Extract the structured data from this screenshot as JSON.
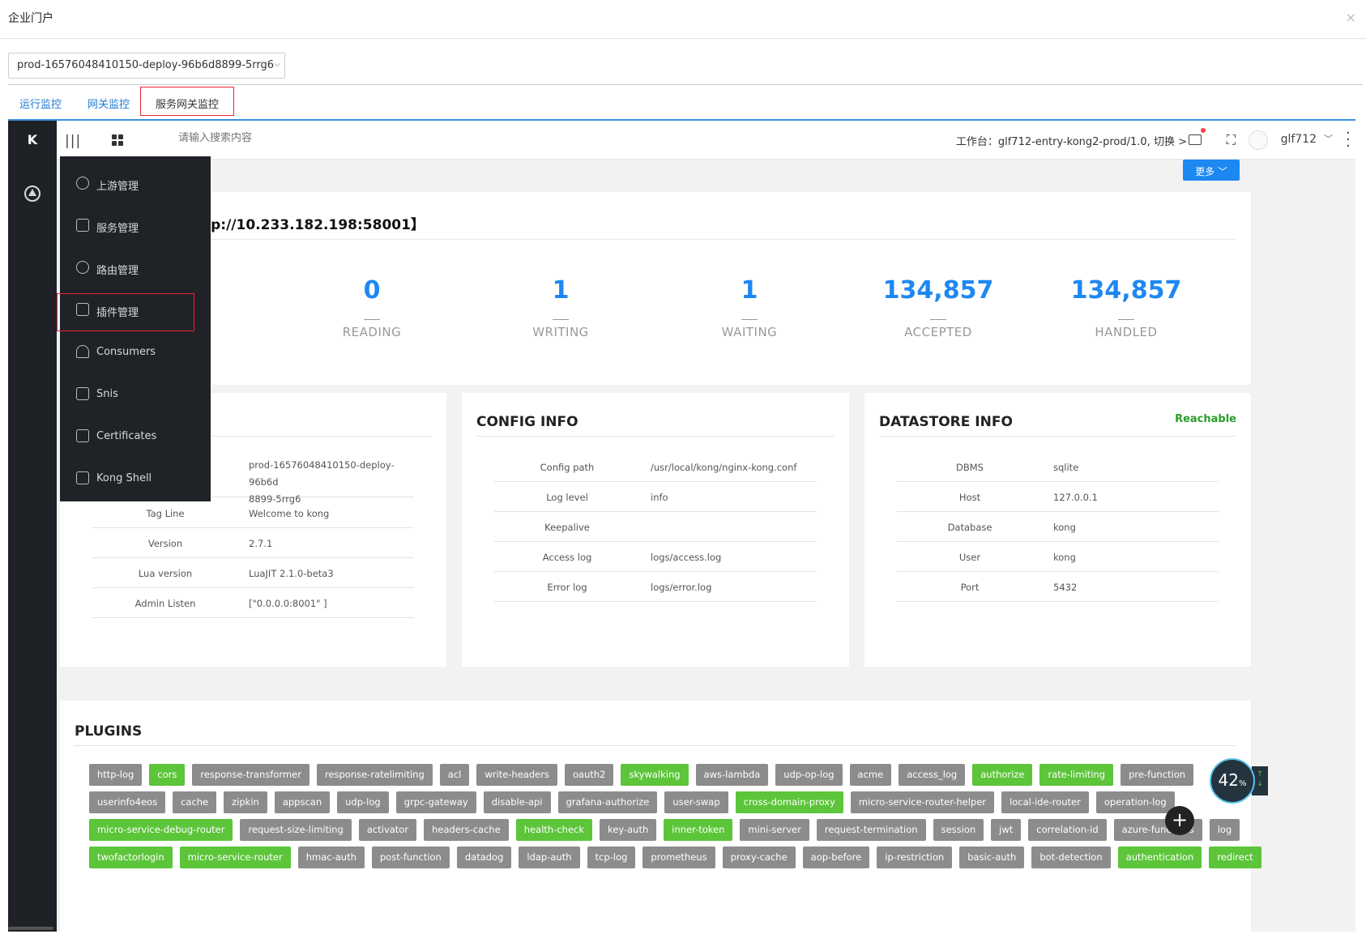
{
  "portal": {
    "title": "企业门户",
    "close_icon": "×",
    "pod": "prod-16576048410150-deploy-96b6d8899-5rrg6",
    "tabs": [
      "运行监控",
      "网关监控",
      "服务网关监控"
    ]
  },
  "app": {
    "logo": "K",
    "search_placeholder": "请输入搜索内容",
    "workspace": "工作台：glf712-entry-kong2-prod/1.0, 切换",
    "workspace_arrow": ">",
    "username": "glf712",
    "more_button": "更多"
  },
  "nav_menu": [
    {
      "label": "上游管理",
      "icon": "upstream-icon"
    },
    {
      "label": "服务管理",
      "icon": "service-tree-icon"
    },
    {
      "label": "路由管理",
      "icon": "route-icon"
    },
    {
      "label": "插件管理",
      "icon": "plugin-icon"
    },
    {
      "label": "Consumers",
      "icon": "user-icon"
    },
    {
      "label": "Snis",
      "icon": "sni-icon"
    },
    {
      "label": "Certificates",
      "icon": "certificate-icon"
    },
    {
      "label": "Kong Shell",
      "icon": "terminal-icon"
    }
  ],
  "node": {
    "title": "tp://10.233.182.198:58001】",
    "metrics": [
      {
        "value": "0",
        "label": "READING"
      },
      {
        "value": "1",
        "label": "WRITING"
      },
      {
        "value": "1",
        "label": "WAITING"
      },
      {
        "value": "134,857",
        "label": "ACCEPTED"
      },
      {
        "value": "134,857",
        "label": "HANDLED"
      }
    ]
  },
  "node_info": {
    "rows": [
      {
        "k": "",
        "v": "prod-16576048410150-deploy-96b6d\n8899-5rrg6"
      },
      {
        "k": "Tag Line",
        "v": "Welcome to kong"
      },
      {
        "k": "Version",
        "v": "2.7.1"
      },
      {
        "k": "Lua version",
        "v": "LuaJIT 2.1.0-beta3"
      },
      {
        "k": "Admin Listen",
        "v": "[\"0.0.0.0:8001\" ]"
      }
    ]
  },
  "config_info": {
    "title": "CONFIG INFO",
    "rows": [
      {
        "k": "Config path",
        "v": "/usr/local/kong/nginx-kong.conf"
      },
      {
        "k": "Log level",
        "v": "info"
      },
      {
        "k": "Keepalive",
        "v": ""
      },
      {
        "k": "Access log",
        "v": "logs/access.log"
      },
      {
        "k": "Error log",
        "v": "logs/error.log"
      }
    ]
  },
  "datastore_info": {
    "title": "DATASTORE INFO",
    "status": "Reachable",
    "rows": [
      {
        "k": "DBMS",
        "v": "sqlite"
      },
      {
        "k": "Host",
        "v": "127.0.0.1"
      },
      {
        "k": "Database",
        "v": "kong"
      },
      {
        "k": "User",
        "v": "kong"
      },
      {
        "k": "Port",
        "v": "5432"
      }
    ]
  },
  "plugins": {
    "title": "PLUGINS",
    "rows": [
      [
        [
          "http-log",
          0
        ],
        [
          "cors",
          1
        ],
        [
          "response-transformer",
          0
        ],
        [
          "response-ratelimiting",
          0
        ],
        [
          "acl",
          0
        ],
        [
          "write-headers",
          0
        ],
        [
          "oauth2",
          0
        ],
        [
          "skywalking",
          1
        ],
        [
          "aws-lambda",
          0
        ],
        [
          "udp-op-log",
          0
        ],
        [
          "acme",
          0
        ],
        [
          "access_log",
          0
        ],
        [
          "authorize",
          1
        ],
        [
          "rate-limiting",
          1
        ],
        [
          "pre-function",
          0
        ]
      ],
      [
        [
          "userinfo4eos",
          0
        ],
        [
          "cache",
          0
        ],
        [
          "zipkin",
          0
        ],
        [
          "appscan",
          0
        ],
        [
          "udp-log",
          0
        ],
        [
          "grpc-gateway",
          0
        ],
        [
          "disable-api",
          0
        ],
        [
          "grafana-authorize",
          0
        ],
        [
          "user-swap",
          0
        ],
        [
          "cross-domain-proxy",
          1
        ],
        [
          "micro-service-router-helper",
          0
        ],
        [
          "local-ide-router",
          0
        ],
        [
          "operation-log",
          0
        ]
      ],
      [
        [
          "micro-service-debug-router",
          1
        ],
        [
          "request-size-limiting",
          0
        ],
        [
          "activator",
          0
        ],
        [
          "headers-cache",
          0
        ],
        [
          "health-check",
          1
        ],
        [
          "key-auth",
          0
        ],
        [
          "inner-token",
          1
        ],
        [
          "mini-server",
          0
        ],
        [
          "request-termination",
          0
        ],
        [
          "session",
          0
        ],
        [
          "jwt",
          0
        ],
        [
          "correlation-id",
          0
        ],
        [
          "azure-functions",
          0
        ],
        [
          "log",
          0
        ]
      ],
      [
        [
          "twofactorlogin",
          1
        ],
        [
          "micro-service-router",
          1
        ],
        [
          "hmac-auth",
          0
        ],
        [
          "post-function",
          0
        ],
        [
          "datadog",
          0
        ],
        [
          "ldap-auth",
          0
        ],
        [
          "tcp-log",
          0
        ],
        [
          "prometheus",
          0
        ],
        [
          "proxy-cache",
          0
        ],
        [
          "aop-before",
          0
        ],
        [
          "ip-restriction",
          0
        ],
        [
          "basic-auth",
          0
        ],
        [
          "bot-detection",
          0
        ],
        [
          "authentication",
          1
        ],
        [
          "redirect",
          1
        ]
      ]
    ]
  },
  "widgets": {
    "gauge_value": "42",
    "gauge_unit": "%",
    "fab_icon": "+"
  }
}
